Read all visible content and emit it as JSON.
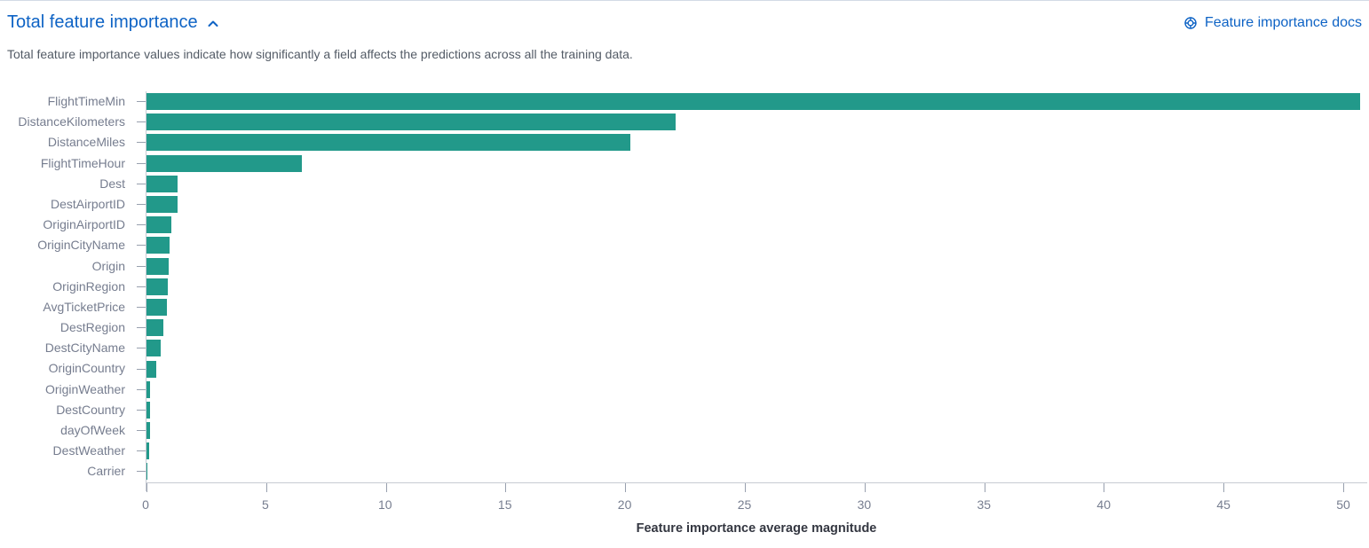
{
  "header": {
    "title": "Total feature importance",
    "docs_link_label": "Feature importance docs"
  },
  "description": "Total feature importance values indicate how significantly a field affects the predictions across all the training data.",
  "icons": {
    "collapse": "chevron-up-icon",
    "docs": "documentation-icon"
  },
  "colors": {
    "bar": "#22998a",
    "link_blue": "#0e63c5",
    "axis_line": "#c7cbd3",
    "tick_mark": "#98a0ae",
    "axis_text": "#767d8f",
    "axis_title_text": "#343741",
    "description_text": "#535b66",
    "panel_border": "#d3dae6"
  },
  "chart_data": {
    "type": "bar",
    "orientation": "horizontal",
    "title": "Total feature importance",
    "xlabel": "Feature importance average magnitude",
    "ylabel": "",
    "xlim": [
      0,
      51
    ],
    "x_ticks": [
      0,
      5,
      10,
      15,
      20,
      25,
      30,
      35,
      40,
      45,
      50
    ],
    "grid": false,
    "legend": false,
    "categories": [
      "FlightTimeMin",
      "DistanceKilometers",
      "DistanceMiles",
      "FlightTimeHour",
      "Dest",
      "DestAirportID",
      "OriginAirportID",
      "OriginCityName",
      "Origin",
      "OriginRegion",
      "AvgTicketPrice",
      "DestRegion",
      "DestCityName",
      "OriginCountry",
      "OriginWeather",
      "DestCountry",
      "dayOfWeek",
      "DestWeather",
      "Carrier"
    ],
    "values": [
      50.7,
      22.1,
      20.2,
      6.5,
      1.31,
      1.28,
      1.04,
      0.95,
      0.92,
      0.9,
      0.84,
      0.69,
      0.58,
      0.4,
      0.16,
      0.15,
      0.14,
      0.12,
      0.03
    ]
  }
}
